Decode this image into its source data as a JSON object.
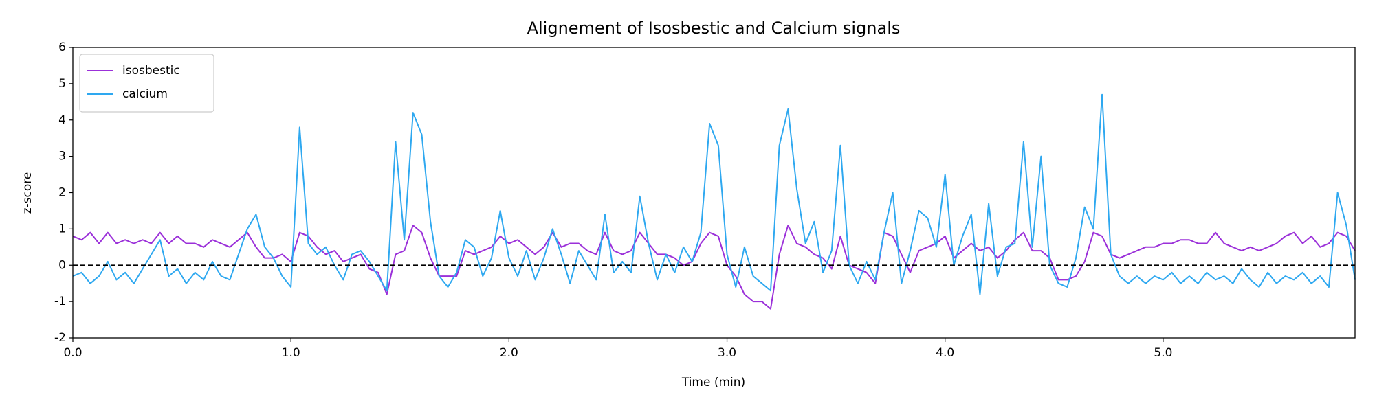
{
  "chart_data": {
    "type": "line",
    "title": "Alignement of Isosbestic and Calcium signals",
    "x_label": "Time (min)",
    "y_label": "z-score",
    "x": [
      0.0,
      0.04,
      0.08,
      0.12,
      0.16,
      0.2,
      0.24,
      0.28,
      0.32,
      0.36,
      0.4,
      0.44,
      0.48,
      0.52,
      0.56,
      0.6,
      0.64,
      0.68,
      0.72,
      0.76,
      0.8,
      0.84,
      0.88,
      0.92,
      0.96,
      1.0,
      1.04,
      1.08,
      1.12,
      1.16,
      1.2,
      1.24,
      1.28,
      1.32,
      1.36,
      1.4,
      1.44,
      1.48,
      1.52,
      1.56,
      1.6,
      1.64,
      1.68,
      1.72,
      1.76,
      1.8,
      1.84,
      1.88,
      1.92,
      1.96,
      2.0,
      2.04,
      2.08,
      2.12,
      2.16,
      2.2,
      2.24,
      2.28,
      2.32,
      2.36,
      2.4,
      2.44,
      2.48,
      2.52,
      2.56,
      2.6,
      2.64,
      2.68,
      2.72,
      2.76,
      2.8,
      2.84,
      2.88,
      2.92,
      2.96,
      3.0,
      3.04,
      3.08,
      3.12,
      3.16,
      3.2,
      3.24,
      3.28,
      3.32,
      3.36,
      3.4,
      3.44,
      3.48,
      3.52,
      3.56,
      3.6,
      3.64,
      3.68,
      3.72,
      3.76,
      3.8,
      3.84,
      3.88,
      3.92,
      3.96,
      4.0,
      4.04,
      4.08,
      4.12,
      4.16,
      4.2,
      4.24,
      4.28,
      4.32,
      4.36,
      4.4,
      4.44,
      4.48,
      4.52,
      4.56,
      4.6,
      4.64,
      4.68,
      4.72,
      4.76,
      4.8,
      4.84,
      4.88,
      4.92,
      4.96,
      5.0,
      5.04,
      5.08,
      5.12,
      5.16,
      5.2,
      5.24,
      5.28,
      5.32,
      5.36,
      5.4,
      5.44,
      5.48,
      5.52,
      5.56,
      5.6,
      5.64,
      5.68,
      5.72,
      5.76,
      5.8,
      5.84,
      5.88
    ],
    "series": [
      {
        "name": "isosbestic",
        "color": "#9b30d9",
        "values": [
          0.8,
          0.7,
          0.9,
          0.6,
          0.9,
          0.6,
          0.7,
          0.6,
          0.7,
          0.6,
          0.9,
          0.6,
          0.8,
          0.6,
          0.6,
          0.5,
          0.7,
          0.6,
          0.5,
          0.7,
          0.9,
          0.5,
          0.2,
          0.2,
          0.3,
          0.1,
          0.9,
          0.8,
          0.5,
          0.3,
          0.4,
          0.1,
          0.2,
          0.3,
          -0.1,
          -0.2,
          -0.8,
          0.3,
          0.4,
          1.1,
          0.9,
          0.2,
          -0.3,
          -0.3,
          -0.3,
          0.4,
          0.3,
          0.4,
          0.5,
          0.8,
          0.6,
          0.7,
          0.5,
          0.3,
          0.5,
          0.9,
          0.5,
          0.6,
          0.6,
          0.4,
          0.3,
          0.9,
          0.4,
          0.3,
          0.4,
          0.9,
          0.6,
          0.3,
          0.3,
          0.2,
          0.0,
          0.1,
          0.6,
          0.9,
          0.8,
          0.0,
          -0.3,
          -0.8,
          -1.0,
          -1.0,
          -1.2,
          0.3,
          1.1,
          0.6,
          0.5,
          0.3,
          0.2,
          -0.1,
          0.8,
          0.0,
          -0.1,
          -0.2,
          -0.5,
          0.9,
          0.8,
          0.3,
          -0.2,
          0.4,
          0.5,
          0.6,
          0.8,
          0.2,
          0.4,
          0.6,
          0.4,
          0.5,
          0.2,
          0.4,
          0.7,
          0.9,
          0.4,
          0.4,
          0.2,
          -0.4,
          -0.4,
          -0.3,
          0.1,
          0.9,
          0.8,
          0.3,
          0.2,
          0.3,
          0.4,
          0.5,
          0.5,
          0.6,
          0.6,
          0.7,
          0.7,
          0.6,
          0.6,
          0.9,
          0.6,
          0.5,
          0.4,
          0.5,
          0.4,
          0.5,
          0.6,
          0.8,
          0.9,
          0.6,
          0.8,
          0.5,
          0.6,
          0.9,
          0.8,
          0.4
        ]
      },
      {
        "name": "calcium",
        "color": "#2ea8f0",
        "values": [
          -0.3,
          -0.2,
          -0.5,
          -0.3,
          0.1,
          -0.4,
          -0.2,
          -0.5,
          -0.1,
          0.3,
          0.7,
          -0.3,
          -0.1,
          -0.5,
          -0.2,
          -0.4,
          0.1,
          -0.3,
          -0.4,
          0.3,
          1.0,
          1.4,
          0.5,
          0.2,
          -0.3,
          -0.6,
          3.8,
          0.6,
          0.3,
          0.5,
          0.0,
          -0.4,
          0.3,
          0.4,
          0.1,
          -0.3,
          -0.7,
          3.4,
          0.7,
          4.2,
          3.6,
          1.2,
          -0.3,
          -0.6,
          -0.2,
          0.7,
          0.5,
          -0.3,
          0.2,
          1.5,
          0.2,
          -0.3,
          0.4,
          -0.4,
          0.2,
          1.0,
          0.3,
          -0.5,
          0.4,
          0.0,
          -0.4,
          1.4,
          -0.2,
          0.1,
          -0.2,
          1.9,
          0.6,
          -0.4,
          0.3,
          -0.2,
          0.5,
          0.1,
          0.9,
          3.9,
          3.3,
          0.3,
          -0.6,
          0.5,
          -0.3,
          -0.5,
          -0.7,
          3.3,
          4.3,
          2.1,
          0.6,
          1.2,
          -0.2,
          0.4,
          3.3,
          0.0,
          -0.5,
          0.1,
          -0.4,
          0.9,
          2.0,
          -0.5,
          0.4,
          1.5,
          1.3,
          0.5,
          2.5,
          0.0,
          0.8,
          1.4,
          -0.8,
          1.7,
          -0.3,
          0.5,
          0.6,
          3.4,
          0.5,
          3.0,
          0.0,
          -0.5,
          -0.6,
          0.2,
          1.6,
          1.0,
          4.7,
          0.3,
          -0.3,
          -0.5,
          -0.3,
          -0.5,
          -0.3,
          -0.4,
          -0.2,
          -0.5,
          -0.3,
          -0.5,
          -0.2,
          -0.4,
          -0.3,
          -0.5,
          -0.1,
          -0.4,
          -0.6,
          -0.2,
          -0.5,
          -0.3,
          -0.4,
          -0.2,
          -0.5,
          -0.3,
          -0.6,
          2.0,
          1.1,
          -0.4
        ]
      }
    ],
    "xlim": [
      0,
      5.88
    ],
    "xticks": [
      {
        "value": 0,
        "label": "0.0"
      },
      {
        "value": 1,
        "label": "1.0"
      },
      {
        "value": 2,
        "label": "2.0"
      },
      {
        "value": 3,
        "label": "3.0"
      },
      {
        "value": 4,
        "label": "4.0"
      },
      {
        "value": 5,
        "label": "5.0"
      }
    ],
    "ylim": [
      -2,
      6
    ],
    "yticks": [
      -2,
      -1,
      0,
      1,
      2,
      3,
      4,
      5,
      6
    ],
    "reference_line": 0,
    "legend": "upper left",
    "grid": false
  }
}
